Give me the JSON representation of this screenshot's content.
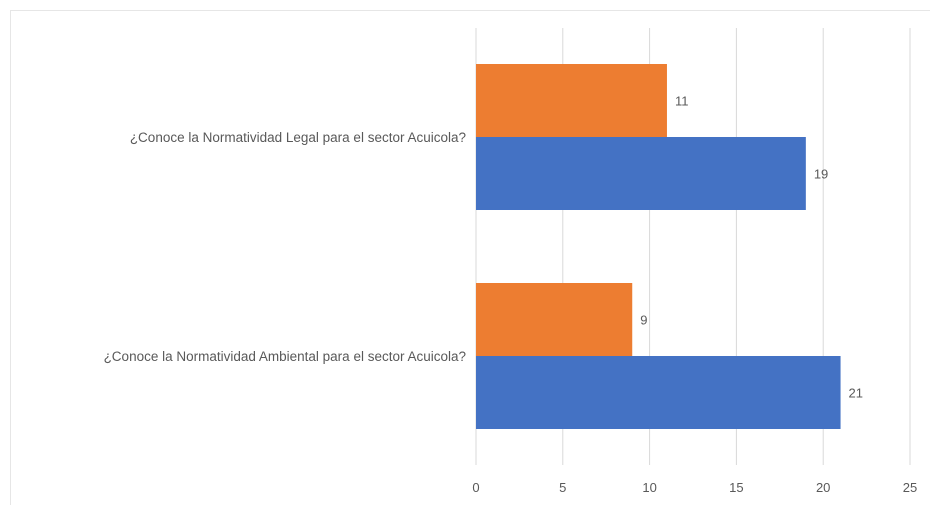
{
  "chart_data": {
    "type": "bar",
    "orientation": "horizontal",
    "title": "",
    "xlabel": "",
    "ylabel": "",
    "categories": [
      "¿Conoce la Normatividad Legal para el sector Acuicola?",
      "¿Conoce la Normatividad Ambiental para el sector Acuicola?"
    ],
    "series": [
      {
        "values": [
          11,
          9
        ],
        "color": "#ED7D31"
      },
      {
        "values": [
          19,
          21
        ],
        "color": "#4472C4"
      }
    ],
    "xlim": [
      0,
      25
    ],
    "xticks": [
      "0",
      "5",
      "10",
      "15",
      "20",
      "25"
    ],
    "grid": "vertical",
    "legend": "none",
    "data_labels": true
  }
}
